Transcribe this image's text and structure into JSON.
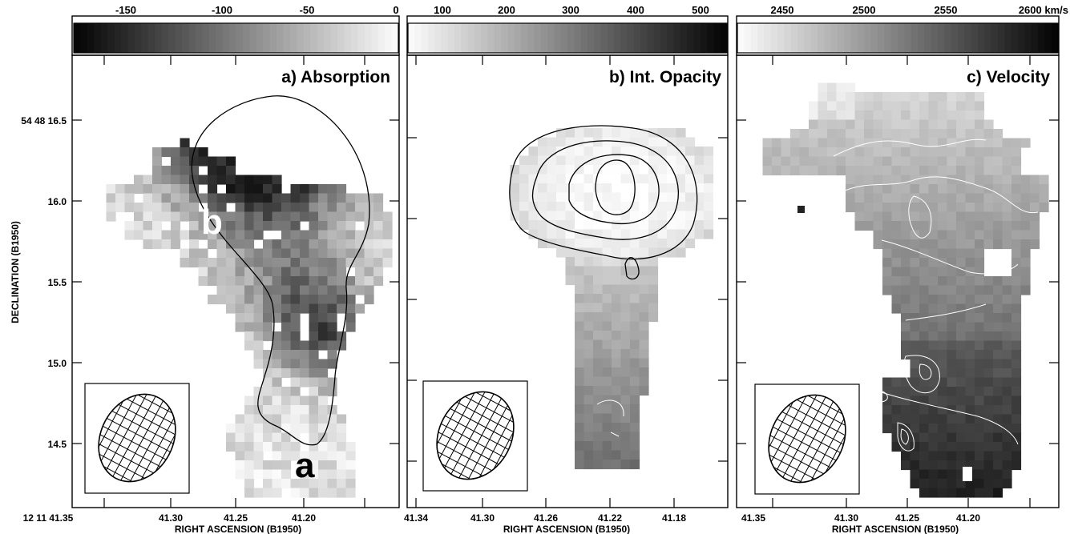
{
  "chart_data": [
    {
      "type": "heatmap",
      "title": "a) Absorption",
      "colorbar": {
        "ticks": [
          "-150",
          "-100",
          "-50",
          "0"
        ],
        "range": [
          -175,
          0
        ],
        "scale": "dark-to-light"
      },
      "xlabel": "RIGHT ASCENSION (B1950)",
      "ylabel": "DECLINATION (B1950)",
      "x_ticks": [
        "12 11 41.35",
        "41.30",
        "41.25",
        "41.20"
      ],
      "y_ticks": [
        "54 48 16.5",
        "16.0",
        "15.5",
        "15.0",
        "14.5"
      ],
      "annotations": [
        "b",
        "a"
      ],
      "beam_inset": true
    },
    {
      "type": "heatmap",
      "title": "b) Int. Opacity",
      "colorbar": {
        "ticks": [
          "100",
          "200",
          "300",
          "400",
          "500"
        ],
        "range": [
          30,
          520
        ],
        "scale": "light-to-dark"
      },
      "xlabel": "RIGHT ASCENSION (B1950)",
      "x_ticks": [
        "41.34",
        "41.30",
        "41.26",
        "41.22",
        "41.18"
      ],
      "beam_inset": true
    },
    {
      "type": "heatmap",
      "title": "c) Velocity",
      "colorbar": {
        "ticks": [
          "2450",
          "2500",
          "2550",
          "2600 km/s"
        ],
        "range": [
          2425,
          2630
        ],
        "scale": "light-to-dark"
      },
      "xlabel": "RIGHT ASCENSION (B1950)",
      "x_ticks": [
        "41.35",
        "41.30",
        "41.25",
        "41.20"
      ],
      "beam_inset": true
    }
  ]
}
